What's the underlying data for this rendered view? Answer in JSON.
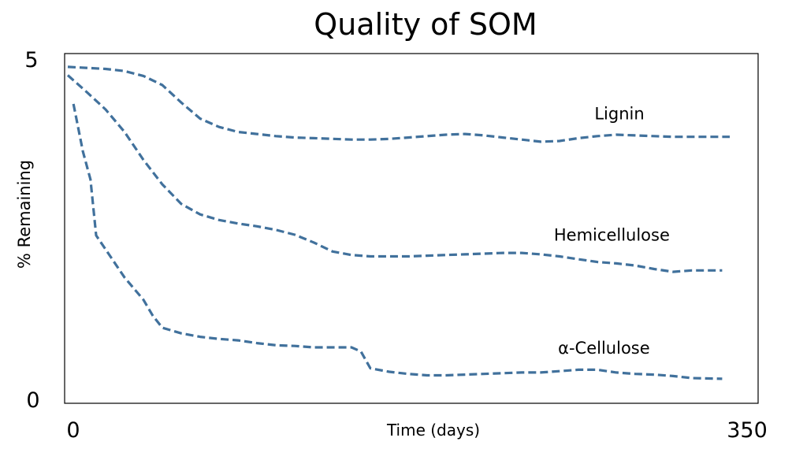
{
  "chart_data": {
    "type": "line",
    "title": "Quality of SOM",
    "xlabel": "Time (days)",
    "ylabel": "% Remaining",
    "xlim": [
      0,
      350
    ],
    "ylim": [
      0,
      5
    ],
    "x_ticks": [
      "0",
      "350"
    ],
    "y_ticks": [
      "0",
      "5"
    ],
    "grid": false,
    "legend": "none",
    "line_color": "#41719C",
    "series": [
      {
        "name": "Lignin",
        "x": [
          0,
          20,
          30,
          40,
          50,
          60,
          70,
          80,
          90,
          100,
          110,
          120,
          130,
          140,
          150,
          160,
          170,
          180,
          190,
          200,
          210,
          220,
          230,
          240,
          250,
          260,
          270,
          280,
          290,
          300,
          310,
          320,
          330,
          340,
          350
        ],
        "y": [
          4.81,
          4.78,
          4.75,
          4.68,
          4.55,
          4.3,
          4.07,
          3.95,
          3.88,
          3.85,
          3.82,
          3.8,
          3.79,
          3.78,
          3.77,
          3.77,
          3.78,
          3.8,
          3.82,
          3.84,
          3.85,
          3.83,
          3.8,
          3.77,
          3.74,
          3.75,
          3.79,
          3.82,
          3.84,
          3.83,
          3.82,
          3.81,
          3.81,
          3.81,
          3.81
        ]
      },
      {
        "name": "Hemicellulose",
        "x": [
          0,
          10,
          20,
          30,
          40,
          50,
          60,
          70,
          80,
          90,
          100,
          110,
          120,
          130,
          140,
          150,
          160,
          170,
          180,
          190,
          200,
          210,
          220,
          230,
          240,
          250,
          260,
          270,
          280,
          290,
          300,
          310,
          320,
          330,
          346
        ],
        "y": [
          4.69,
          4.45,
          4.2,
          3.88,
          3.48,
          3.13,
          2.85,
          2.7,
          2.62,
          2.57,
          2.53,
          2.48,
          2.41,
          2.3,
          2.17,
          2.12,
          2.1,
          2.1,
          2.1,
          2.11,
          2.12,
          2.13,
          2.14,
          2.15,
          2.15,
          2.13,
          2.1,
          2.06,
          2.02,
          2.0,
          1.97,
          1.92,
          1.88,
          1.9,
          1.9
        ]
      },
      {
        "name": "α-Cellulose",
        "x": [
          3,
          8,
          12,
          15,
          20,
          30,
          40,
          45,
          50,
          60,
          70,
          80,
          90,
          100,
          110,
          120,
          130,
          140,
          150,
          155,
          160,
          170,
          180,
          190,
          200,
          210,
          220,
          230,
          240,
          250,
          260,
          270,
          280,
          290,
          300,
          310,
          320,
          330,
          346
        ],
        "y": [
          4.28,
          3.6,
          3.2,
          2.4,
          2.2,
          1.8,
          1.48,
          1.25,
          1.08,
          1.0,
          0.95,
          0.92,
          0.9,
          0.86,
          0.83,
          0.82,
          0.8,
          0.8,
          0.8,
          0.74,
          0.5,
          0.45,
          0.42,
          0.4,
          0.4,
          0.41,
          0.42,
          0.43,
          0.44,
          0.44,
          0.46,
          0.48,
          0.48,
          0.44,
          0.42,
          0.41,
          0.39,
          0.36,
          0.35
        ]
      }
    ]
  }
}
